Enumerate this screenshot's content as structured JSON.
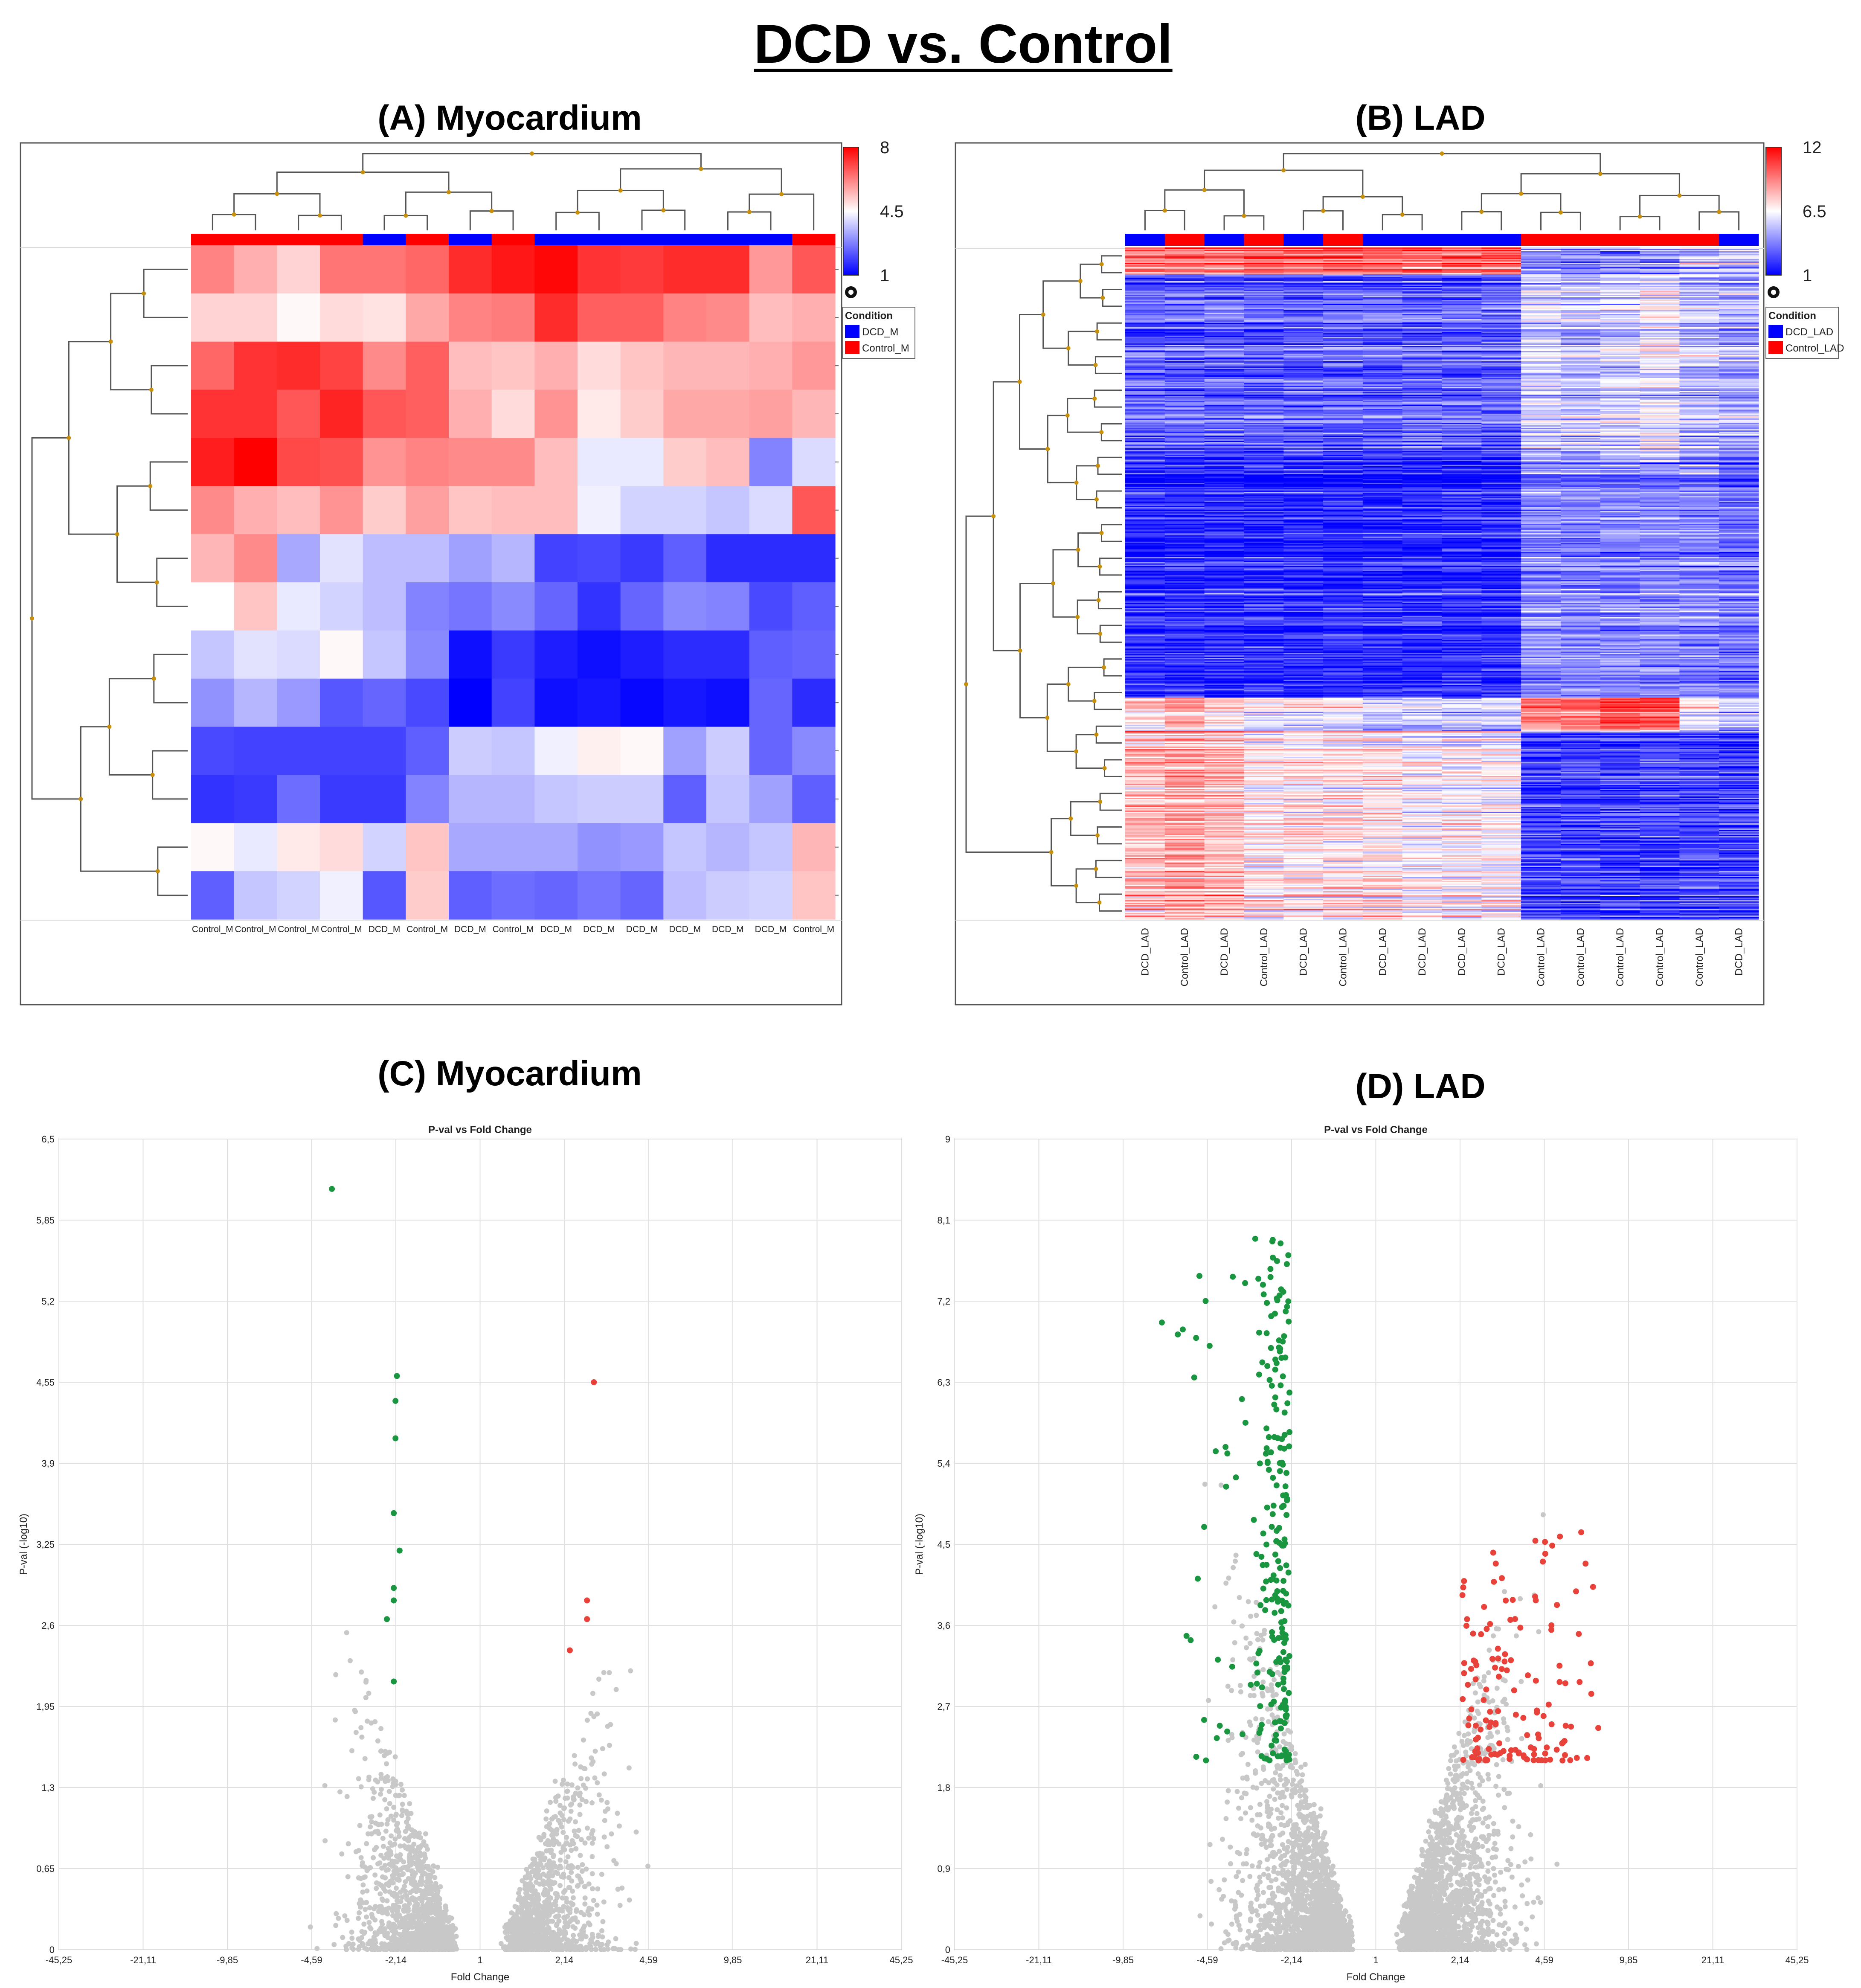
{
  "figure_title": "DCD vs. Control",
  "chart_data": [
    {
      "type": "heatmap",
      "panel_title": "(A) Myocardium",
      "columns": [
        "Control_M",
        "Control_M",
        "Control_M",
        "Control_M",
        "DCD_M",
        "Control_M",
        "DCD_M",
        "Control_M",
        "DCD_M",
        "DCD_M",
        "DCD_M",
        "DCD_M",
        "DCD_M",
        "DCD_M",
        "Control_M"
      ],
      "column_conditions": [
        "Control_M",
        "Control_M",
        "Control_M",
        "Control_M",
        "DCD_M",
        "Control_M",
        "DCD_M",
        "Control_M",
        "DCD_M",
        "DCD_M",
        "DCD_M",
        "DCD_M",
        "DCD_M",
        "DCD_M",
        "Control_M"
      ],
      "values": [
        [
          6.2,
          5.6,
          5.1,
          6.4,
          6.4,
          6.6,
          7.4,
          7.7,
          7.9,
          7.3,
          7.2,
          7.4,
          7.4,
          5.9,
          6.8
        ],
        [
          5.1,
          5.1,
          4.6,
          5.0,
          4.9,
          5.7,
          6.2,
          6.3,
          7.4,
          6.7,
          6.7,
          6.2,
          6.1,
          5.4,
          5.6
        ],
        [
          6.6,
          7.3,
          7.4,
          7.1,
          6.1,
          6.7,
          5.4,
          5.3,
          5.6,
          5.0,
          5.3,
          5.5,
          5.5,
          5.6,
          5.9
        ],
        [
          7.3,
          7.3,
          6.8,
          7.5,
          6.8,
          6.7,
          5.6,
          5.0,
          6.0,
          4.8,
          5.2,
          5.7,
          5.7,
          5.8,
          5.5
        ],
        [
          7.6,
          8.0,
          7.0,
          6.9,
          6.0,
          6.2,
          6.1,
          6.1,
          5.4,
          4.2,
          4.2,
          5.2,
          5.4,
          2.8,
          4.0
        ],
        [
          6.1,
          5.6,
          5.4,
          6.0,
          5.2,
          5.8,
          5.3,
          5.4,
          5.4,
          4.3,
          3.9,
          3.9,
          3.7,
          4.0,
          6.8
        ],
        [
          5.5,
          6.1,
          3.3,
          4.1,
          3.6,
          3.6,
          3.2,
          3.5,
          1.9,
          2.0,
          1.8,
          2.3,
          1.6,
          1.6,
          1.6
        ],
        [
          4.5,
          5.3,
          4.2,
          3.9,
          3.6,
          2.8,
          2.6,
          2.9,
          2.4,
          1.7,
          2.4,
          2.9,
          2.8,
          2.0,
          2.3
        ],
        [
          3.7,
          4.1,
          4.0,
          4.6,
          3.7,
          2.9,
          1.2,
          1.8,
          1.4,
          1.2,
          1.4,
          1.6,
          1.6,
          2.3,
          2.4
        ],
        [
          3.0,
          3.5,
          3.1,
          2.2,
          2.4,
          2.0,
          1.0,
          1.9,
          1.2,
          1.3,
          1.1,
          1.3,
          1.2,
          2.4,
          1.6
        ],
        [
          2.0,
          1.9,
          1.9,
          1.9,
          1.9,
          2.3,
          3.8,
          3.7,
          4.3,
          4.7,
          4.6,
          3.2,
          3.8,
          2.4,
          2.9
        ],
        [
          1.7,
          1.8,
          2.5,
          1.8,
          1.8,
          2.8,
          3.5,
          3.5,
          3.7,
          3.8,
          3.8,
          2.3,
          3.7,
          3.2,
          2.3
        ],
        [
          4.6,
          4.2,
          4.8,
          5.0,
          3.9,
          5.3,
          3.3,
          3.3,
          3.3,
          3.0,
          3.1,
          3.7,
          3.5,
          3.7,
          5.5
        ],
        [
          2.3,
          3.7,
          3.9,
          4.3,
          2.2,
          5.2,
          2.3,
          2.5,
          2.4,
          2.6,
          2.4,
          3.6,
          3.8,
          3.9,
          5.3
        ]
      ],
      "color_scale": {
        "min": 1,
        "mid": 4.5,
        "max": 8,
        "low_color": "#0000ff",
        "mid_color": "#ffffff",
        "high_color": "#ff0000",
        "tick_labels": [
          "8",
          "4.5",
          "1"
        ]
      },
      "legend": {
        "title": "Condition",
        "entries": [
          {
            "label": "DCD_M",
            "color": "#0000ff"
          },
          {
            "label": "Control_M",
            "color": "#ff0000"
          }
        ]
      }
    },
    {
      "type": "heatmap",
      "panel_title": "(B) LAD",
      "columns": [
        "DCD_LAD",
        "Control_LAD",
        "DCD_LAD",
        "Control_LAD",
        "DCD_LAD",
        "Control_LAD",
        "DCD_LAD",
        "DCD_LAD",
        "DCD_LAD",
        "DCD_LAD",
        "Control_LAD",
        "Control_LAD",
        "Control_LAD",
        "Control_LAD",
        "Control_LAD",
        "DCD_LAD"
      ],
      "column_conditions": [
        "DCD_LAD",
        "Control_LAD",
        "DCD_LAD",
        "Control_LAD",
        "DCD_LAD",
        "Control_LAD",
        "DCD_LAD",
        "DCD_LAD",
        "DCD_LAD",
        "DCD_LAD",
        "Control_LAD",
        "Control_LAD",
        "Control_LAD",
        "Control_LAD",
        "Control_LAD",
        "DCD_LAD"
      ],
      "row_clusters": [
        {
          "fraction": 0.04,
          "pattern": [
            9.5,
            9.5,
            9.5,
            10,
            10,
            10,
            10,
            10,
            10,
            10,
            4,
            4,
            4,
            4,
            5,
            5
          ]
        },
        {
          "fraction": 0.28,
          "pattern": [
            3,
            3,
            3,
            3,
            3,
            3,
            3,
            3,
            3,
            3,
            5.5,
            5,
            5.5,
            6,
            5,
            4.5
          ]
        },
        {
          "fraction": 0.35,
          "pattern": [
            2,
            2,
            2,
            2,
            2,
            2,
            2,
            2,
            2,
            2,
            4,
            4,
            4,
            4,
            4,
            3.5
          ]
        },
        {
          "fraction": 0.05,
          "pattern": [
            7,
            8,
            7,
            6,
            6,
            6,
            5,
            5,
            5,
            5,
            9,
            9,
            10,
            10,
            6,
            5
          ]
        },
        {
          "fraction": 0.28,
          "pattern": [
            8,
            8.5,
            8,
            7,
            7,
            7,
            7,
            6.5,
            6.5,
            6.5,
            2.5,
            2.5,
            2.5,
            2.5,
            2.5,
            2.5
          ]
        }
      ],
      "color_scale": {
        "min": 1,
        "mid": 6.5,
        "max": 12,
        "low_color": "#0000ff",
        "mid_color": "#ffffff",
        "high_color": "#ff0000",
        "tick_labels": [
          "12",
          "6.5",
          "1"
        ]
      },
      "legend": {
        "title": "Condition",
        "entries": [
          {
            "label": "DCD_LAD",
            "color": "#0000ff"
          },
          {
            "label": "Control_LAD",
            "color": "#ff0000"
          }
        ]
      }
    },
    {
      "type": "scatter",
      "panel_title": "(C) Myocardium",
      "title": "P-val vs Fold Change",
      "xlabel": "Fold Change",
      "ylabel": "P-val (-log10)",
      "x_ticks": [
        "-45,25",
        "-21,11",
        "-9,85",
        "-4,59",
        "-2,14",
        "1",
        "2,14",
        "4,59",
        "9,85",
        "21,11",
        "45,25"
      ],
      "y_ticks": [
        "0",
        "0,65",
        "1,3",
        "1,95",
        "2,6",
        "3,25",
        "3,9",
        "4,55",
        "5,2",
        "5,85",
        "6,5"
      ],
      "ylim": [
        0,
        6.5
      ],
      "grid": true,
      "series": [
        {
          "color": "#1a9641",
          "points": [
            [
              -4.0,
              6.1
            ],
            [
              -2.1,
              4.6
            ],
            [
              -2.15,
              4.4
            ],
            [
              -2.15,
              4.1
            ],
            [
              -2.2,
              3.5
            ],
            [
              -2.0,
              3.2
            ],
            [
              -2.2,
              2.9
            ],
            [
              -2.2,
              2.8
            ],
            [
              -2.4,
              2.65
            ],
            [
              -2.2,
              2.15
            ]
          ]
        },
        {
          "color": "#e8423a",
          "points": [
            [
              3.0,
              4.55
            ],
            [
              2.8,
              2.8
            ],
            [
              2.8,
              2.65
            ],
            [
              2.3,
              2.4
            ]
          ]
        },
        {
          "color": "#c8c8c8",
          "count": 2600,
          "background": true
        }
      ]
    },
    {
      "type": "scatter",
      "panel_title": "(D) LAD",
      "title": "P-val vs Fold Change",
      "xlabel": "Fold Change",
      "ylabel": "P-val (-log10)",
      "x_ticks": [
        "-45,25",
        "-21,11",
        "-9,85",
        "-4,59",
        "-2,14",
        "1",
        "2,14",
        "4,59",
        "9,85",
        "21,11",
        "45,25"
      ],
      "y_ticks": [
        "0",
        "0,9",
        "1,8",
        "2,7",
        "3,6",
        "4,5",
        "5,4",
        "6,3",
        "7,2",
        "8,1",
        "9"
      ],
      "ylim": [
        0,
        9
      ],
      "grid": true,
      "series": [
        {
          "color": "#1a9641",
          "count": 240
        },
        {
          "color": "#e8423a",
          "count": 140
        },
        {
          "color": "#c8c8c8",
          "count": 4200,
          "background": true
        }
      ]
    }
  ]
}
